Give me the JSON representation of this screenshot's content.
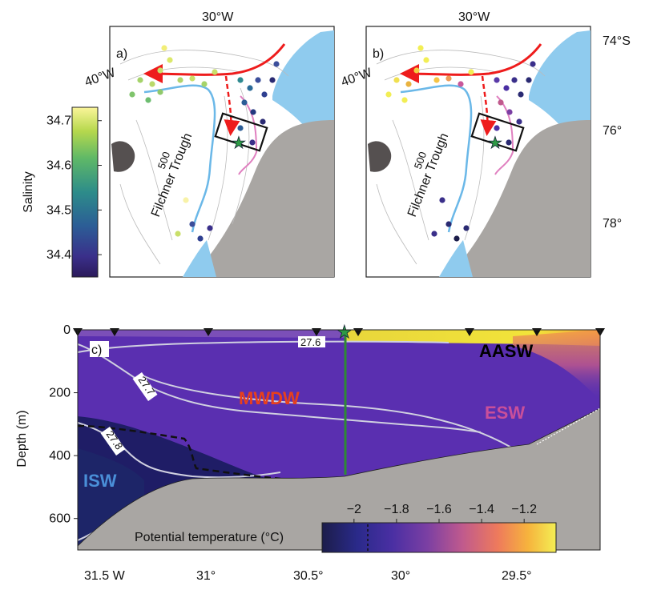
{
  "maps": {
    "top_lon_a": "30°W",
    "top_lon_b": "30°W",
    "left_lon_a": "40°W",
    "left_lon_b": "40°W",
    "panel_a_label": "a)",
    "panel_b_label": "b)",
    "lat_labels": [
      "74°S",
      "76°",
      "78°"
    ],
    "trough_label": "Filchner Trough",
    "contour_label": "500"
  },
  "colorbar_salinity": {
    "label": "Salinity",
    "ticks": [
      "34.7",
      "34.6",
      "34.5",
      "34.4"
    ],
    "tick_values": [
      34.7,
      34.6,
      34.5,
      34.4
    ],
    "range": [
      34.35,
      34.73
    ]
  },
  "section": {
    "panel_label": "c)",
    "ylabel": "Depth (m)",
    "yticks": [
      "0",
      "200",
      "400",
      "600"
    ],
    "ytick_values": [
      0,
      200,
      400,
      600
    ],
    "xticks": [
      "31.5  W",
      "31°",
      "30.5°",
      "30°",
      "29.5°"
    ],
    "water_masses": {
      "aasw": {
        "label": "AASW",
        "color": "#000000"
      },
      "mwdw": {
        "label": "MWDW",
        "color": "#e8401c"
      },
      "esw": {
        "label": "ESW",
        "color": "#c94f9a"
      },
      "isw": {
        "label": "ISW",
        "color": "#4a8fd8"
      }
    },
    "isopycnals": [
      "27.6",
      "27.7",
      "27.8"
    ],
    "colorbar": {
      "label": "Potential temperature (°C)",
      "ticks": [
        "−2",
        "−1.8",
        "−1.6",
        "−1.4",
        "−1.2"
      ],
      "tick_values": [
        -2.0,
        -1.8,
        -1.6,
        -1.4,
        -1.2
      ],
      "range": [
        -2.15,
        -1.05
      ]
    }
  },
  "chart_data": {
    "type": "heatmap",
    "title": "",
    "xlabel": "",
    "ylabel": "Depth (m)",
    "x_ticks": [
      "31.5 W",
      "31°",
      "30.5°",
      "30°",
      "29.5°"
    ],
    "ylim": [
      700,
      0
    ],
    "colorbar_label": "Potential temperature (°C)",
    "colorbar_range": [
      -2.15,
      -1.05
    ],
    "isopycnal_labels": [
      "27.6",
      "27.7",
      "27.8"
    ],
    "water_mass_labels": [
      "AASW",
      "MWDW",
      "ESW",
      "ISW"
    ]
  }
}
